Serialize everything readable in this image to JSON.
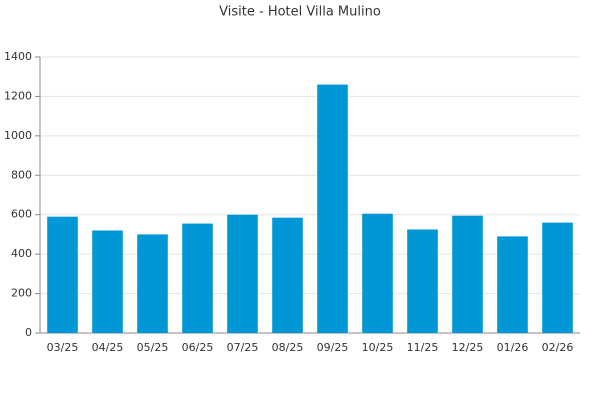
{
  "chart_data": {
    "type": "bar",
    "title": "Visite - Hotel Villa Mulino",
    "categories": [
      "03/25",
      "04/25",
      "05/25",
      "06/25",
      "07/25",
      "08/25",
      "09/25",
      "10/25",
      "11/25",
      "12/25",
      "01/26",
      "02/26"
    ],
    "values": [
      590,
      520,
      500,
      555,
      600,
      585,
      1260,
      605,
      525,
      595,
      490,
      560
    ],
    "color": "#0097d6",
    "ylim": [
      0,
      1400
    ],
    "yticks": [
      0,
      200,
      400,
      600,
      800,
      1000,
      1200,
      1400
    ],
    "grid": true
  }
}
